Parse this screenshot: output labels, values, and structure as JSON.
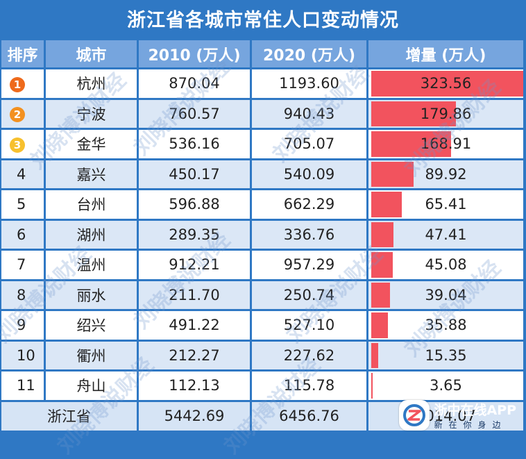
{
  "title": "浙江省各城市常住人口变动情况",
  "headers": {
    "rank": "排序",
    "city": "城市",
    "y2010": "2010 (万人)",
    "y2020": "2020 (万人)",
    "delta": "增量 (万人)"
  },
  "colors": {
    "background": "#2f78c4",
    "header": "#76a5de",
    "bar": "#f2535e",
    "medal_1": "#ee6a1c",
    "medal_2": "#f39120",
    "medal_3": "#f7c02e"
  },
  "icons": {
    "medals": [
      "medal-1-icon",
      "medal-2-icon",
      "medal-3-icon"
    ],
    "app_logo": "zjol-logo-icon"
  },
  "chart_data": {
    "type": "table",
    "title": "浙江省各城市常住人口变动情况",
    "columns": [
      "排序",
      "城市",
      "2010 (万人)",
      "2020 (万人)",
      "增量 (万人)"
    ],
    "rows": [
      {
        "rank": "1",
        "city": "杭州",
        "y2010": "870.04",
        "y2020": "1193.60",
        "delta": "323.56",
        "delta_value": 323.56
      },
      {
        "rank": "2",
        "city": "宁波",
        "y2010": "760.57",
        "y2020": "940.43",
        "delta": "179.86",
        "delta_value": 179.86
      },
      {
        "rank": "3",
        "city": "金华",
        "y2010": "536.16",
        "y2020": "705.07",
        "delta": "168.91",
        "delta_value": 168.91
      },
      {
        "rank": "4",
        "city": "嘉兴",
        "y2010": "450.17",
        "y2020": "540.09",
        "delta": "89.92",
        "delta_value": 89.92
      },
      {
        "rank": "5",
        "city": "台州",
        "y2010": "596.88",
        "y2020": "662.29",
        "delta": "65.41",
        "delta_value": 65.41
      },
      {
        "rank": "6",
        "city": "湖州",
        "y2010": "289.35",
        "y2020": "336.76",
        "delta": "47.41",
        "delta_value": 47.41
      },
      {
        "rank": "7",
        "city": "温州",
        "y2010": "912.21",
        "y2020": "957.29",
        "delta": "45.08",
        "delta_value": 45.08
      },
      {
        "rank": "8",
        "city": "丽水",
        "y2010": "211.70",
        "y2020": "250.74",
        "delta": "39.04",
        "delta_value": 39.04
      },
      {
        "rank": "9",
        "city": "绍兴",
        "y2010": "491.22",
        "y2020": "527.10",
        "delta": "35.88",
        "delta_value": 35.88
      },
      {
        "rank": "10",
        "city": "衢州",
        "y2010": "212.27",
        "y2020": "227.62",
        "delta": "15.35",
        "delta_value": 15.35
      },
      {
        "rank": "11",
        "city": "舟山",
        "y2010": "112.13",
        "y2020": "115.78",
        "delta": "3.65",
        "delta_value": 3.65
      }
    ],
    "total": {
      "label": "浙江省",
      "y2010": "5442.69",
      "y2020": "6456.76",
      "delta": "1014.07"
    },
    "bar_max": 323.56
  },
  "watermark": "刘晓博说财经",
  "app_badge": {
    "name": "浙中在线APP",
    "slogan": "新在你身边"
  }
}
